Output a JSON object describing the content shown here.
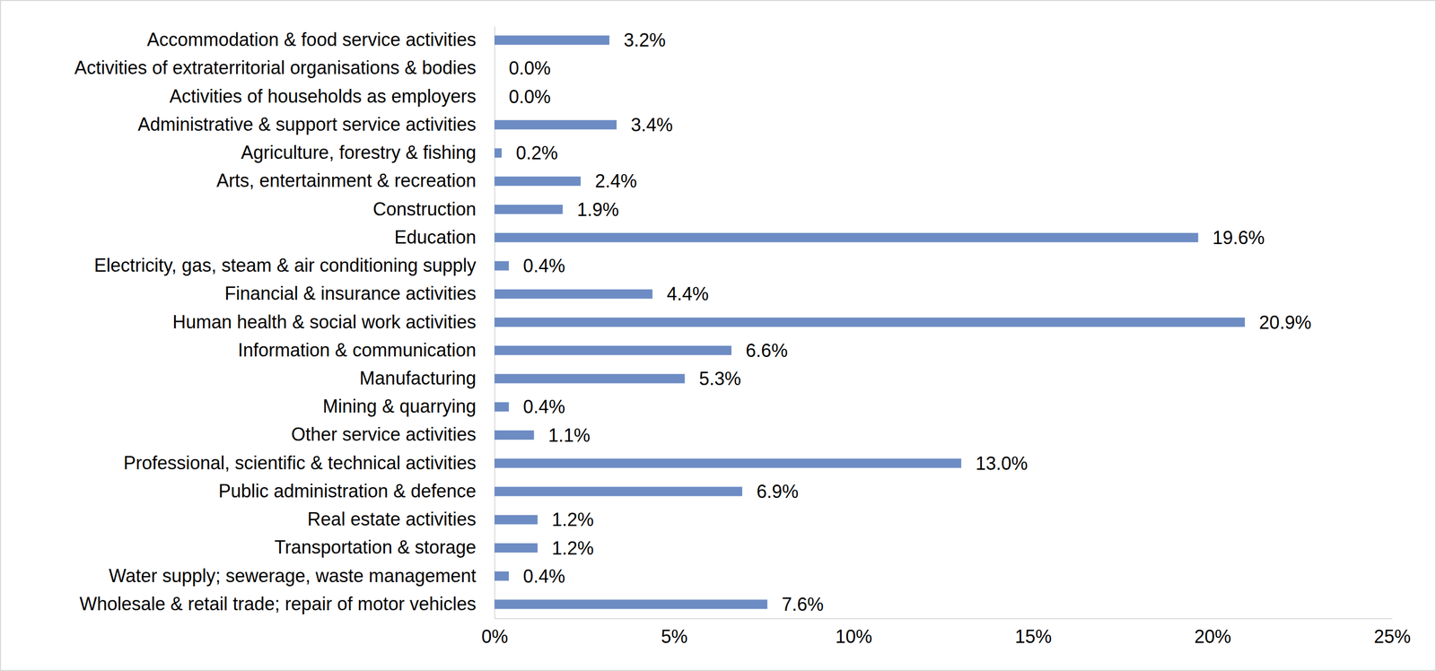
{
  "chart_data": {
    "type": "bar",
    "orientation": "horizontal",
    "color": "#6d8cc4",
    "data_labels": true,
    "grid": false,
    "categories": [
      "Accommodation & food service activities",
      "Activities of extraterritorial organisations & bodies",
      "Activities of households as employers",
      "Administrative & support service activities",
      "Agriculture, forestry & fishing",
      "Arts, entertainment & recreation",
      "Construction",
      "Education",
      "Electricity, gas, steam & air conditioning supply",
      "Financial & insurance activities",
      "Human health & social work activities",
      "Information & communication",
      "Manufacturing",
      "Mining & quarrying",
      "Other service activities",
      "Professional, scientific & technical activities",
      "Public administration & defence",
      "Real estate activities",
      "Transportation & storage",
      "Water supply; sewerage, waste management",
      "Wholesale & retail trade; repair of motor vehicles"
    ],
    "values": [
      3.2,
      0.0,
      0.0,
      3.4,
      0.2,
      2.4,
      1.9,
      19.6,
      0.4,
      4.4,
      20.9,
      6.6,
      5.3,
      0.4,
      1.1,
      13.0,
      6.9,
      1.2,
      1.2,
      0.4,
      7.6
    ],
    "value_labels": [
      "3.2%",
      "0.0%",
      "0.0%",
      "3.4%",
      "0.2%",
      "2.4%",
      "1.9%",
      "19.6%",
      "0.4%",
      "4.4%",
      "20.9%",
      "6.6%",
      "5.3%",
      "0.4%",
      "1.1%",
      "13.0%",
      "6.9%",
      "1.2%",
      "1.2%",
      "0.4%",
      "7.6%"
    ],
    "xlim": [
      0,
      25
    ],
    "xticks": [
      {
        "value": 0,
        "label": "0%"
      },
      {
        "value": 5,
        "label": "5%"
      },
      {
        "value": 10,
        "label": "10%"
      },
      {
        "value": 15,
        "label": "15%"
      },
      {
        "value": 20,
        "label": "20%"
      },
      {
        "value": 25,
        "label": "25%"
      }
    ]
  }
}
